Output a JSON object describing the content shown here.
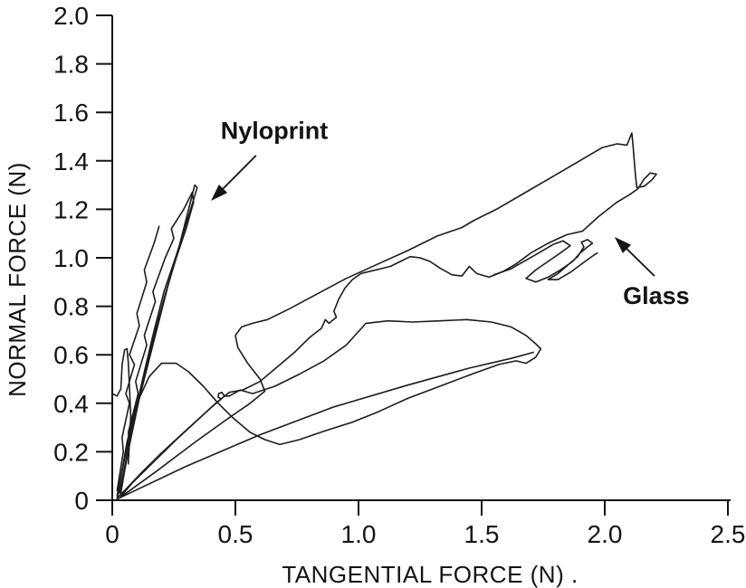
{
  "figure": {
    "background_color": "#ffffff",
    "ink_color": "#141414",
    "description": "Scanned black-and-white scientific line plot of normal force versus tangential force with two arrow-labelled trace families"
  },
  "chart_data": {
    "type": "line",
    "title": "",
    "xlabel": "TANGENTIAL FORCE (N) .",
    "ylabel": "NORMAL FORCE (N)",
    "xlim": [
      0,
      2.5
    ],
    "ylim": [
      0,
      2.0
    ],
    "grid": false,
    "legend_position": "none",
    "x_tick_values": [
      0,
      0.5,
      1.0,
      1.5,
      2.0,
      2.5
    ],
    "x_tick_labels": [
      "0",
      "0.5",
      "1.0",
      "1.5",
      "2.0",
      "2.5"
    ],
    "y_tick_values": [
      0,
      0.2,
      0.4,
      0.6,
      0.8,
      1.0,
      1.2,
      1.4,
      1.6,
      1.8,
      2.0
    ],
    "y_tick_labels": [
      "0",
      "0.2",
      "0.4",
      "0.6",
      "0.8",
      "1.0",
      "1.2",
      "1.4",
      "1.6",
      "1.8",
      "2.0"
    ],
    "series": [
      {
        "name": "Nyloprint",
        "description": "Steep narrow bundle of friction loops, slope ~3.8, reaching about (0.35, 1.3)",
        "traces": [
          [
            [
              0.02,
              0.02
            ],
            [
              0.05,
              0.17
            ],
            [
              0.09,
              0.35
            ],
            [
              0.13,
              0.53
            ],
            [
              0.17,
              0.7
            ],
            [
              0.21,
              0.86
            ],
            [
              0.26,
              1.01
            ],
            [
              0.3,
              1.14
            ],
            [
              0.33,
              1.24
            ],
            [
              0.345,
              1.29
            ],
            [
              0.335,
              1.3
            ],
            [
              0.315,
              1.22
            ],
            [
              0.275,
              1.06
            ],
            [
              0.225,
              0.88
            ],
            [
              0.17,
              0.66
            ],
            [
              0.11,
              0.42
            ],
            [
              0.06,
              0.18
            ],
            [
              0.03,
              0.04
            ],
            [
              0.02,
              0.02
            ]
          ],
          [
            [
              0.03,
              0.03
            ],
            [
              0.07,
              0.24
            ],
            [
              0.065,
              0.28
            ],
            [
              0.105,
              0.44
            ],
            [
              0.095,
              0.49
            ],
            [
              0.14,
              0.64
            ],
            [
              0.13,
              0.68
            ],
            [
              0.175,
              0.82
            ],
            [
              0.165,
              0.86
            ],
            [
              0.215,
              1.0
            ],
            [
              0.25,
              1.08
            ],
            [
              0.24,
              1.12
            ],
            [
              0.29,
              1.2
            ],
            [
              0.325,
              1.27
            ],
            [
              0.33,
              1.23
            ],
            [
              0.3,
              1.12
            ],
            [
              0.26,
              1.0
            ],
            [
              0.215,
              0.85
            ],
            [
              0.17,
              0.68
            ],
            [
              0.125,
              0.49
            ],
            [
              0.085,
              0.31
            ],
            [
              0.05,
              0.12
            ],
            [
              0.035,
              0.03
            ]
          ],
          [
            [
              0.02,
              0.04
            ],
            [
              0.045,
              0.2
            ],
            [
              0.04,
              0.26
            ],
            [
              0.07,
              0.4
            ],
            [
              0.055,
              0.44
            ],
            [
              0.09,
              0.56
            ],
            [
              0.07,
              0.6
            ],
            [
              0.11,
              0.72
            ],
            [
              0.1,
              0.77
            ],
            [
              0.14,
              0.9
            ],
            [
              0.13,
              0.95
            ],
            [
              0.17,
              1.06
            ],
            [
              0.19,
              1.13
            ]
          ],
          [
            [
              0.0,
              0.44
            ],
            [
              0.02,
              0.43
            ],
            [
              0.035,
              0.46
            ],
            [
              0.04,
              0.56
            ],
            [
              0.05,
              0.62
            ],
            [
              0.06,
              0.625
            ],
            [
              0.065,
              0.57
            ],
            [
              0.07,
              0.47
            ],
            [
              0.075,
              0.35
            ],
            [
              0.07,
              0.24
            ],
            [
              0.065,
              0.15
            ]
          ]
        ]
      },
      {
        "name": "Glass",
        "description": "Wide shallow friction loops, slope ~0.6, extending to about (2.2, 1.5)",
        "traces": [
          [
            [
              0.02,
              0.01
            ],
            [
              0.06,
              0.24
            ],
            [
              0.1,
              0.4
            ],
            [
              0.15,
              0.51
            ],
            [
              0.2,
              0.565
            ],
            [
              0.26,
              0.565
            ],
            [
              0.31,
              0.53
            ],
            [
              0.37,
              0.47
            ],
            [
              0.43,
              0.4
            ],
            [
              0.49,
              0.34
            ],
            [
              0.56,
              0.28
            ],
            [
              0.62,
              0.25
            ],
            [
              0.68,
              0.23
            ],
            [
              0.76,
              0.25
            ],
            [
              0.86,
              0.285
            ],
            [
              0.97,
              0.32
            ],
            [
              1.08,
              0.365
            ],
            [
              1.2,
              0.42
            ],
            [
              1.33,
              0.47
            ],
            [
              1.46,
              0.52
            ],
            [
              1.57,
              0.56
            ],
            [
              1.64,
              0.575
            ],
            [
              1.68,
              0.565
            ],
            [
              1.72,
              0.59
            ],
            [
              1.74,
              0.625
            ],
            [
              1.72,
              0.645
            ],
            [
              1.68,
              0.68
            ],
            [
              1.62,
              0.715
            ],
            [
              1.54,
              0.735
            ],
            [
              1.44,
              0.745
            ],
            [
              1.33,
              0.74
            ],
            [
              1.22,
              0.735
            ],
            [
              1.12,
              0.74
            ],
            [
              1.03,
              0.73
            ],
            [
              0.95,
              0.64
            ],
            [
              0.86,
              0.575
            ],
            [
              0.76,
              0.52
            ],
            [
              0.66,
              0.47
            ],
            [
              0.57,
              0.44
            ],
            [
              0.52,
              0.455
            ],
            [
              0.475,
              0.43
            ],
            [
              0.455,
              0.43
            ],
            [
              0.445,
              0.445
            ],
            [
              0.432,
              0.44
            ],
            [
              0.43,
              0.425
            ],
            [
              0.443,
              0.418
            ],
            [
              0.41,
              0.39
            ],
            [
              0.35,
              0.335
            ],
            [
              0.28,
              0.27
            ],
            [
              0.2,
              0.195
            ],
            [
              0.12,
              0.115
            ],
            [
              0.05,
              0.04
            ],
            [
              0.02,
              0.01
            ]
          ],
          [
            [
              0.03,
              0.01
            ],
            [
              0.18,
              0.12
            ],
            [
              0.33,
              0.235
            ],
            [
              0.46,
              0.33
            ],
            [
              0.56,
              0.4
            ],
            [
              0.62,
              0.45
            ],
            [
              0.6,
              0.5
            ],
            [
              0.55,
              0.565
            ],
            [
              0.51,
              0.63
            ],
            [
              0.5,
              0.68
            ],
            [
              0.525,
              0.715
            ],
            [
              0.57,
              0.73
            ],
            [
              0.63,
              0.745
            ],
            [
              0.72,
              0.79
            ],
            [
              0.83,
              0.85
            ],
            [
              0.95,
              0.915
            ],
            [
              1.08,
              0.975
            ],
            [
              1.2,
              1.03
            ],
            [
              1.32,
              1.09
            ],
            [
              1.42,
              1.125
            ],
            [
              1.47,
              1.155
            ],
            [
              1.56,
              1.2
            ],
            [
              1.67,
              1.265
            ],
            [
              1.78,
              1.33
            ],
            [
              1.89,
              1.395
            ],
            [
              1.99,
              1.455
            ],
            [
              2.05,
              1.47
            ],
            [
              2.09,
              1.465
            ],
            [
              2.11,
              1.515
            ],
            [
              2.115,
              1.46
            ],
            [
              2.12,
              1.4
            ],
            [
              2.125,
              1.335
            ],
            [
              2.13,
              1.29
            ],
            [
              2.16,
              1.295
            ],
            [
              2.19,
              1.32
            ],
            [
              2.21,
              1.345
            ],
            [
              2.185,
              1.35
            ],
            [
              2.16,
              1.325
            ],
            [
              2.135,
              1.285
            ],
            [
              2.1,
              1.26
            ],
            [
              2.05,
              1.23
            ],
            [
              1.975,
              1.17
            ],
            [
              1.91,
              1.11
            ],
            [
              1.845,
              1.095
            ],
            [
              1.77,
              1.06
            ],
            [
              1.7,
              1.02
            ],
            [
              1.64,
              0.975
            ],
            [
              1.59,
              0.945
            ],
            [
              1.53,
              0.92
            ],
            [
              1.48,
              0.935
            ],
            [
              1.45,
              0.965
            ],
            [
              1.42,
              0.925
            ],
            [
              1.38,
              0.93
            ],
            [
              1.335,
              0.955
            ],
            [
              1.29,
              0.985
            ],
            [
              1.25,
              1.0
            ],
            [
              1.21,
              1.005
            ],
            [
              1.17,
              0.985
            ],
            [
              1.13,
              0.965
            ],
            [
              1.09,
              0.955
            ],
            [
              1.05,
              0.945
            ],
            [
              1.01,
              0.935
            ],
            [
              0.975,
              0.91
            ],
            [
              0.945,
              0.875
            ],
            [
              0.92,
              0.83
            ],
            [
              0.9,
              0.78
            ],
            [
              0.91,
              0.755
            ],
            [
              0.88,
              0.73
            ],
            [
              0.865,
              0.745
            ],
            [
              0.85,
              0.71
            ],
            [
              0.8,
              0.67
            ],
            [
              0.74,
              0.61
            ],
            [
              0.67,
              0.55
            ],
            [
              0.6,
              0.49
            ],
            [
              0.53,
              0.455
            ],
            [
              0.475,
              0.445
            ],
            [
              0.42,
              0.4
            ],
            [
              0.34,
              0.325
            ],
            [
              0.26,
              0.25
            ],
            [
              0.17,
              0.16
            ],
            [
              0.08,
              0.07
            ],
            [
              0.03,
              0.01
            ]
          ],
          [
            [
              1.55,
              0.93
            ],
            [
              1.62,
              0.955
            ],
            [
              1.68,
              0.99
            ],
            [
              1.74,
              1.025
            ],
            [
              1.79,
              1.055
            ],
            [
              1.83,
              1.07
            ],
            [
              1.86,
              1.05
            ],
            [
              1.82,
              1.02
            ],
            [
              1.77,
              0.985
            ],
            [
              1.72,
              0.95
            ],
            [
              1.68,
              0.915
            ],
            [
              1.72,
              0.9
            ],
            [
              1.77,
              0.92
            ],
            [
              1.82,
              0.95
            ],
            [
              1.87,
              0.985
            ],
            [
              1.9,
              1.02
            ],
            [
              1.93,
              1.045
            ],
            [
              1.95,
              1.06
            ],
            [
              1.93,
              1.075
            ],
            [
              1.905,
              1.065
            ],
            [
              1.915,
              1.045
            ],
            [
              1.89,
              1.005
            ],
            [
              1.85,
              0.97
            ],
            [
              1.81,
              0.935
            ],
            [
              1.77,
              0.91
            ],
            [
              1.81,
              0.91
            ],
            [
              1.86,
              0.94
            ],
            [
              1.9,
              0.97
            ],
            [
              1.94,
              1.0
            ],
            [
              1.97,
              1.02
            ]
          ],
          [
            [
              0.02,
              0.005
            ],
            [
              0.3,
              0.14
            ],
            [
              0.6,
              0.27
            ],
            [
              0.9,
              0.385
            ],
            [
              1.2,
              0.475
            ],
            [
              1.45,
              0.545
            ],
            [
              1.62,
              0.585
            ],
            [
              1.71,
              0.61
            ]
          ]
        ]
      }
    ],
    "annotations": [
      {
        "text": "Nyloprint",
        "bold": true,
        "text_at": [
          0.658,
          1.525
        ],
        "arrow_from": [
          0.584,
          1.422
        ],
        "arrow_to": [
          0.401,
          1.235
        ]
      },
      {
        "text": "Glass",
        "bold": true,
        "text_at": [
          2.209,
          0.843
        ],
        "arrow_from": [
          2.202,
          0.925
        ],
        "arrow_to": [
          2.04,
          1.086
        ]
      }
    ]
  }
}
